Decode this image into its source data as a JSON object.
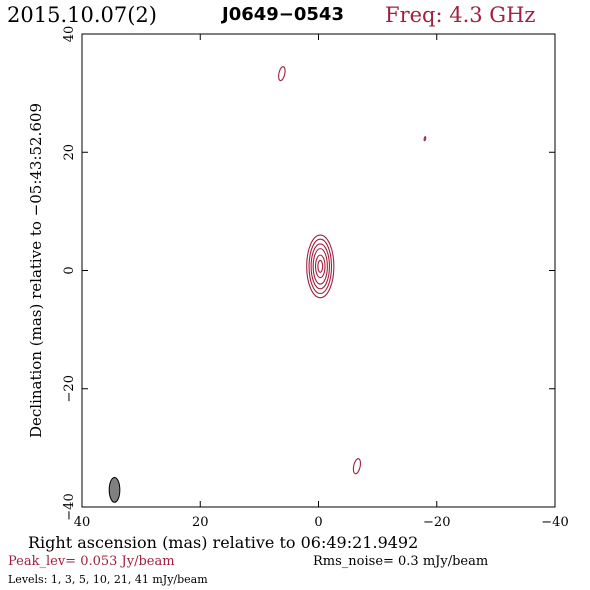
{
  "header": {
    "date": "2015.10.07(2)",
    "source": "J0649−0543",
    "freq": "Freq: 4.3 GHz"
  },
  "chart_data": {
    "type": "contour",
    "xlabel": "Right ascension (mas) relative to 06:49:21.9492",
    "ylabel": "Declination (mas) relative to −05:43:52.609",
    "xlim": [
      40,
      -40
    ],
    "ylim": [
      -40,
      40
    ],
    "x_ticks": [
      {
        "value": 40,
        "label": "40"
      },
      {
        "value": 20,
        "label": "20"
      },
      {
        "value": 0,
        "label": "0"
      },
      {
        "value": -20,
        "label": "−20"
      },
      {
        "value": -40,
        "label": "−40"
      }
    ],
    "y_ticks": [
      {
        "value": 40,
        "label": "40"
      },
      {
        "value": 20,
        "label": "20"
      },
      {
        "value": 0,
        "label": "0"
      },
      {
        "value": -20,
        "label": "−20"
      },
      {
        "value": -40,
        "label": "−40"
      }
    ],
    "contour_color": "#a0213f",
    "core": {
      "x": -0.3,
      "y": 0.7,
      "rings": [
        {
          "a": 2.3,
          "b": 5.3
        },
        {
          "a": 1.9,
          "b": 4.6
        },
        {
          "a": 1.55,
          "b": 3.8
        },
        {
          "a": 1.2,
          "b": 3.0
        },
        {
          "a": 0.8,
          "b": 1.9
        },
        {
          "a": 0.4,
          "b": 1.0
        }
      ]
    },
    "islands": [
      {
        "x": 6.2,
        "y": 33.3,
        "a": 0.5,
        "b": 1.2
      },
      {
        "x": -6.5,
        "y": -33.1,
        "a": 0.55,
        "b": 1.3
      },
      {
        "x": -18.0,
        "y": 22.3,
        "a": 0.12,
        "b": 0.35
      }
    ],
    "beam": {
      "x": 34.5,
      "y": -37.1,
      "a": 0.9,
      "b": 2.1,
      "fill": "#808080"
    },
    "peak_level": "Peak_lev=  0.053 Jy/beam",
    "rms_noise": "Rms_noise=   0.3 mJy/beam",
    "levels_text": "Levels:   1,   3,   5,  10,  21,  41 mJy/beam"
  }
}
